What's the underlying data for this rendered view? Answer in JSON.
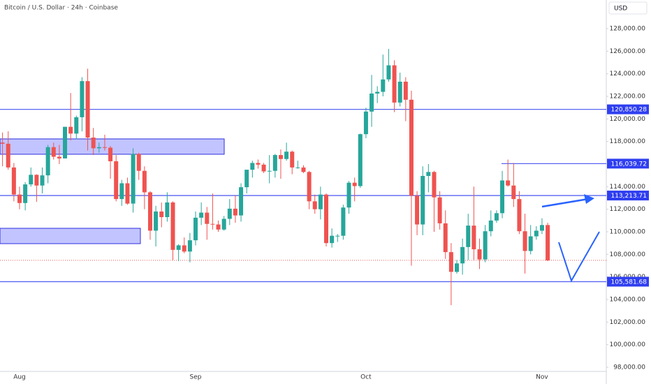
{
  "chart_data": {
    "type": "candlestick",
    "title": "Bitcoin / U.S. Dollar · 24h · Coinbase",
    "currency": "USD",
    "categories": [
      null,
      null,
      null,
      "Aug",
      null,
      null,
      null,
      null,
      null,
      null,
      null,
      null,
      null,
      null,
      null,
      null,
      null,
      null,
      null,
      null,
      null,
      null,
      null,
      null,
      null,
      null,
      null,
      null,
      null,
      null,
      null,
      null,
      null,
      null,
      "Sep",
      null,
      null,
      null,
      null,
      null,
      null,
      null,
      null,
      null,
      null,
      null,
      null,
      null,
      null,
      null,
      null,
      null,
      null,
      null,
      null,
      null,
      null,
      null,
      null,
      null,
      null,
      null,
      null,
      null,
      "Oct",
      null,
      null,
      null,
      null,
      null,
      null,
      null,
      null,
      null,
      null,
      null,
      null,
      null,
      null,
      null,
      null,
      null,
      null,
      null,
      null,
      null,
      null,
      null,
      null,
      null,
      null,
      null,
      null,
      null,
      null,
      "Nov",
      null
    ],
    "open": [
      117900,
      117800,
      115700,
      113300,
      112550,
      114200,
      115050,
      114100,
      115000,
      117500,
      116650,
      116500,
      119300,
      118700,
      120150,
      123350,
      118350,
      117400,
      117500,
      117450,
      116250,
      112900,
      114300,
      112500,
      116900,
      115400,
      113500,
      110100,
      111800,
      111300,
      112600,
      108400,
      108800,
      108250,
      109250,
      111250,
      111700,
      110700,
      110650,
      110200,
      111150,
      112050,
      111450,
      113950,
      115500,
      116100,
      115950,
      115350,
      115400,
      116800,
      116450,
      117100,
      115700,
      115700,
      115300,
      112700,
      112000,
      113300,
      109000,
      109650,
      109650,
      112150,
      114350,
      114050,
      118650,
      120650,
      122250,
      122400,
      123500,
      124750,
      121450,
      123300,
      121700,
      113200,
      110650,
      114950,
      115300,
      113050,
      110750,
      108200,
      106450,
      107200,
      108650,
      110550,
      108450,
      107550,
      110050,
      111000,
      111650,
      114550,
      114100,
      112900,
      110050,
      108300,
      109600,
      110100,
      110600
    ],
    "high": [
      118800,
      118900,
      116100,
      114000,
      114400,
      115700,
      115100,
      115700,
      117700,
      117900,
      117700,
      119300,
      122300,
      120300,
      123700,
      124450,
      119200,
      117900,
      118600,
      117600,
      116800,
      114600,
      114800,
      117400,
      117000,
      115800,
      113600,
      112300,
      112600,
      113500,
      112700,
      108900,
      109500,
      109900,
      111800,
      112600,
      112200,
      113400,
      111000,
      111400,
      112900,
      113200,
      114300,
      115500,
      116300,
      116400,
      116100,
      116800,
      116900,
      117300,
      117900,
      117200,
      116300,
      115900,
      115400,
      113300,
      114000,
      113400,
      110300,
      109800,
      112400,
      114500,
      114800,
      118700,
      121000,
      123900,
      122900,
      125700,
      126200,
      125200,
      124100,
      123700,
      122500,
      113600,
      115800,
      116000,
      115400,
      113600,
      111900,
      109000,
      107500,
      109400,
      111600,
      114000,
      109400,
      110600,
      111900,
      111900,
      115400,
      116400,
      116100,
      113600,
      111600,
      110600,
      110500,
      111200,
      110800
    ],
    "low": [
      115800,
      115500,
      112700,
      112000,
      111900,
      114000,
      112650,
      113400,
      114300,
      116400,
      116000,
      116500,
      118100,
      118200,
      118900,
      117200,
      116800,
      117000,
      117200,
      114700,
      112700,
      112300,
      112400,
      111700,
      114600,
      112000,
      109300,
      108700,
      110400,
      110900,
      107500,
      107400,
      108100,
      107300,
      108800,
      110600,
      109300,
      110200,
      110000,
      110100,
      110600,
      110800,
      110900,
      113400,
      114800,
      115600,
      115200,
      114300,
      114800,
      114700,
      116300,
      115100,
      115600,
      115200,
      112000,
      111600,
      111100,
      108700,
      108600,
      109100,
      109300,
      111600,
      112700,
      113900,
      118300,
      119300,
      121400,
      122000,
      123300,
      120600,
      121100,
      119800,
      107000,
      109700,
      109700,
      113500,
      110000,
      110200,
      107600,
      103500,
      106300,
      106200,
      107500,
      107500,
      106700,
      107300,
      109600,
      110800,
      111200,
      114000,
      112200,
      109800,
      106300,
      108000,
      109300,
      109800,
      107400
    ],
    "close": [
      117800,
      115700,
      113300,
      112550,
      114200,
      115050,
      114100,
      115000,
      117500,
      116650,
      116500,
      119300,
      118700,
      120150,
      123350,
      118350,
      117400,
      117500,
      117450,
      116250,
      112900,
      114300,
      112500,
      116900,
      115400,
      113500,
      110100,
      111800,
      111300,
      112600,
      108400,
      108800,
      108250,
      109250,
      111250,
      111700,
      110700,
      110650,
      110200,
      111150,
      112050,
      111450,
      113950,
      115500,
      116100,
      115950,
      115350,
      115400,
      116800,
      116450,
      117100,
      115700,
      115700,
      115300,
      112700,
      112000,
      113300,
      109000,
      109650,
      109650,
      112150,
      114350,
      114050,
      118650,
      120650,
      122250,
      122400,
      123500,
      124750,
      121450,
      123300,
      121700,
      113200,
      110650,
      114950,
      115300,
      113050,
      110750,
      108200,
      106450,
      107200,
      108650,
      110550,
      108450,
      107550,
      110050,
      111000,
      111650,
      114550,
      114100,
      112900,
      110050,
      108300,
      109600,
      110100,
      110600,
      107470
    ],
    "up_color": "#26a69a",
    "down_color": "#ef5350",
    "ylim": [
      97630,
      130536
    ],
    "yticks": [
      {
        "value": 98000,
        "label": "98,000.00"
      },
      {
        "value": 100000,
        "label": "100,000.00"
      },
      {
        "value": 102000,
        "label": "102,000.00"
      },
      {
        "value": 104000,
        "label": "104,000.00"
      },
      {
        "value": 106000,
        "label": "106,000.00"
      },
      {
        "value": 108000,
        "label": "108,000.00"
      },
      {
        "value": 110000,
        "label": "110,000.00"
      },
      {
        "value": 112000,
        "label": "112,000.00"
      },
      {
        "value": 114000,
        "label": "114,000.00"
      },
      {
        "value": 116000,
        "label": "116,000.00"
      },
      {
        "value": 118000,
        "label": "118,000.00"
      },
      {
        "value": 120000,
        "label": "120,000.00"
      },
      {
        "value": 122000,
        "label": "122,000.00"
      },
      {
        "value": 124000,
        "label": "124,000.00"
      },
      {
        "value": 126000,
        "label": "126,000.00"
      },
      {
        "value": 128000,
        "label": "128,000.00"
      }
    ],
    "grid": false,
    "levels": [
      {
        "value": 120850.28,
        "label": "120,850.28"
      },
      {
        "value": 116039.72,
        "label": "116,039.72"
      },
      {
        "value": 113213.71,
        "label": "113,213.71"
      },
      {
        "value": 105581.68,
        "label": "105,581.68"
      }
    ],
    "zones": [
      {
        "top": 118230,
        "bottom": 116870
      },
      {
        "top": 110310,
        "bottom": 108950
      }
    ]
  }
}
